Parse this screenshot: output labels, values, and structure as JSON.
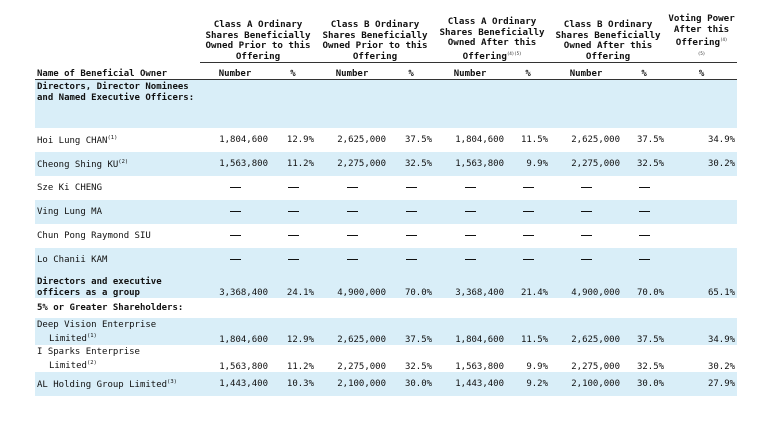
{
  "headers": {
    "class_a_prior": "Class A Ordinary Shares Beneficially Owned Prior to this Offering",
    "class_b_prior": "Class B Ordinary Shares Beneficially Owned Prior to this Offering",
    "class_a_after": "Class A Ordinary Shares Beneficially Owned After this Offering",
    "class_a_after_note": "(4)(5)",
    "class_b_after": "Class B Ordinary Shares Beneficially Owned After this Offering",
    "voting": "Voting Power After this Offering",
    "voting_note": "(4)",
    "voting_note2": "(5)"
  },
  "columns": {
    "name": "Name of Beneficial Owner",
    "number": "Number",
    "pct": "%"
  },
  "section_directors": "Directors, Director Nominees and Named Executive Officers:",
  "section_shareholders": "5% or Greater Shareholders:",
  "rows": [
    {
      "name": "Hoi Lung CHAN",
      "note": "(1)",
      "a_num": "1,804,600",
      "a_pct": "12.9%",
      "b_num": "2,625,000",
      "b_pct": "37.5%",
      "aa_num": "1,804,600",
      "aa_pct": "11.5%",
      "ba_num": "2,625,000",
      "ba_pct": "37.5%",
      "vote": "34.9%"
    },
    {
      "name": "Cheong Shing KU",
      "note": "(2)",
      "a_num": "1,563,800",
      "a_pct": "11.2%",
      "b_num": "2,275,000",
      "b_pct": "32.5%",
      "aa_num": "1,563,800",
      "aa_pct": "9.9%",
      "ba_num": "2,275,000",
      "ba_pct": "32.5%",
      "vote": "30.2%"
    },
    {
      "name": "Sze Ki CHENG",
      "note": "",
      "a_num": "",
      "a_pct": "",
      "b_num": "",
      "b_pct": "",
      "aa_num": "",
      "aa_pct": "",
      "ba_num": "",
      "ba_pct": "",
      "vote": ""
    },
    {
      "name": "Ving Lung MA",
      "note": "",
      "a_num": "",
      "a_pct": "",
      "b_num": "",
      "b_pct": "",
      "aa_num": "",
      "aa_pct": "",
      "ba_num": "",
      "ba_pct": "",
      "vote": ""
    },
    {
      "name": "Chun Pong Raymond SIU",
      "note": "",
      "a_num": "",
      "a_pct": "",
      "b_num": "",
      "b_pct": "",
      "aa_num": "",
      "aa_pct": "",
      "ba_num": "",
      "ba_pct": "",
      "vote": ""
    },
    {
      "name": "Lo Chanii KAM",
      "note": "",
      "a_num": "",
      "a_pct": "",
      "b_num": "",
      "b_pct": "",
      "aa_num": "",
      "aa_pct": "",
      "ba_num": "",
      "ba_pct": "",
      "vote": ""
    }
  ],
  "group_row": {
    "name": "Directors and executive officers as a group",
    "a_num": "3,368,400",
    "a_pct": "24.1%",
    "b_num": "4,900,000",
    "b_pct": "70.0%",
    "aa_num": "3,368,400",
    "aa_pct": "21.4%",
    "ba_num": "4,900,000",
    "ba_pct": "70.0%",
    "vote": "65.1%"
  },
  "holders": [
    {
      "name1": "Deep Vision Enterprise",
      "name2": "Limited",
      "note": "(1)",
      "a_num": "1,804,600",
      "a_pct": "12.9%",
      "b_num": "2,625,000",
      "b_pct": "37.5%",
      "aa_num": "1,804,600",
      "aa_pct": "11.5%",
      "ba_num": "2,625,000",
      "ba_pct": "37.5%",
      "vote": "34.9%"
    },
    {
      "name1": "I Sparks Enterprise",
      "name2": "Limited",
      "note": "(2)",
      "a_num": "1,563,800",
      "a_pct": "11.2%",
      "b_num": "2,275,000",
      "b_pct": "32.5%",
      "aa_num": "1,563,800",
      "aa_pct": "9.9%",
      "ba_num": "2,275,000",
      "ba_pct": "32.5%",
      "vote": "30.2%"
    },
    {
      "name1": "AL Holding Group Limited",
      "name2": "",
      "note": "(3)",
      "a_num": "1,443,400",
      "a_pct": "10.3%",
      "b_num": "2,100,000",
      "b_pct": "30.0%",
      "aa_num": "1,443,400",
      "aa_pct": "9.2%",
      "ba_num": "2,100,000",
      "ba_pct": "30.0%",
      "vote": "27.9%"
    }
  ]
}
